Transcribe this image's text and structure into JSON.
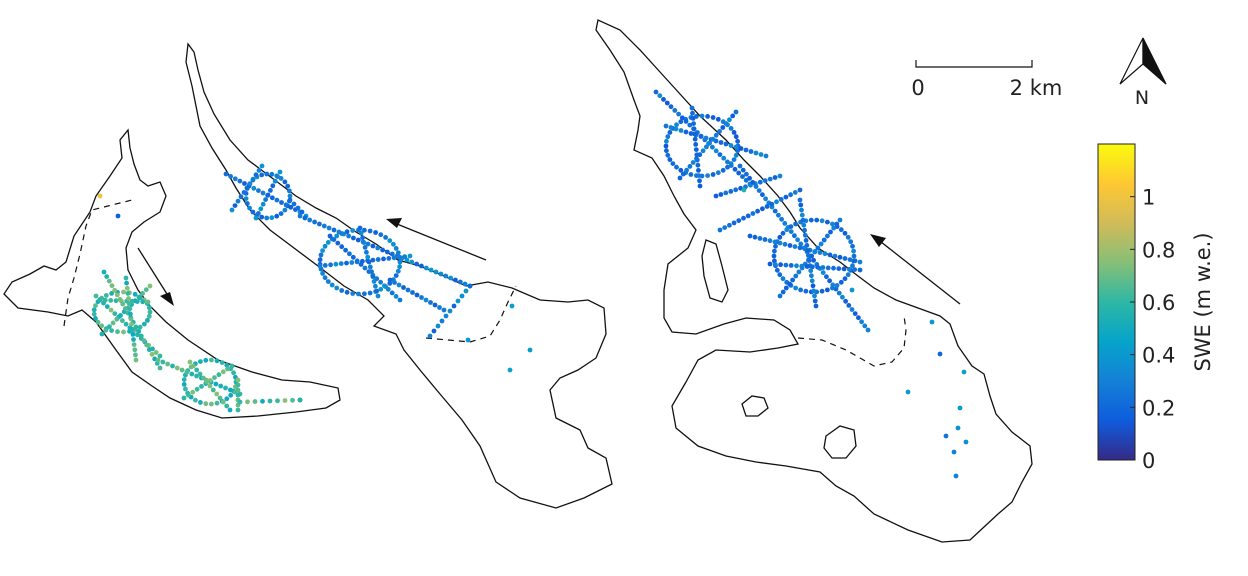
{
  "scale_bar": {
    "start_label": "0",
    "end_label": "2 km"
  },
  "north_arrow": {
    "label": "N"
  },
  "colorbar": {
    "title": "SWE (m w.e.)",
    "tick_labels": [
      "0",
      "0.2",
      "0.4",
      "0.6",
      "0.8",
      "1"
    ],
    "tick_values": [
      0,
      0.2,
      0.4,
      0.6,
      0.8,
      1.0
    ],
    "range": [
      0,
      1.2
    ],
    "colormap": "parula",
    "stops": [
      "#352a87",
      "#0f5cdd",
      "#1481d6",
      "#06a4ca",
      "#2eb7a4",
      "#87bf77",
      "#d1bb59",
      "#fec832",
      "#f9fb0e"
    ]
  },
  "glaciers": [
    {
      "id": "left",
      "flow_direction": "down-right",
      "typical_swe": 0.6
    },
    {
      "id": "middle",
      "flow_direction": "up-left",
      "typical_swe": 0.3
    },
    {
      "id": "right",
      "flow_direction": "up-left",
      "typical_swe": 0.25
    }
  ],
  "outline_color": "#111111"
}
